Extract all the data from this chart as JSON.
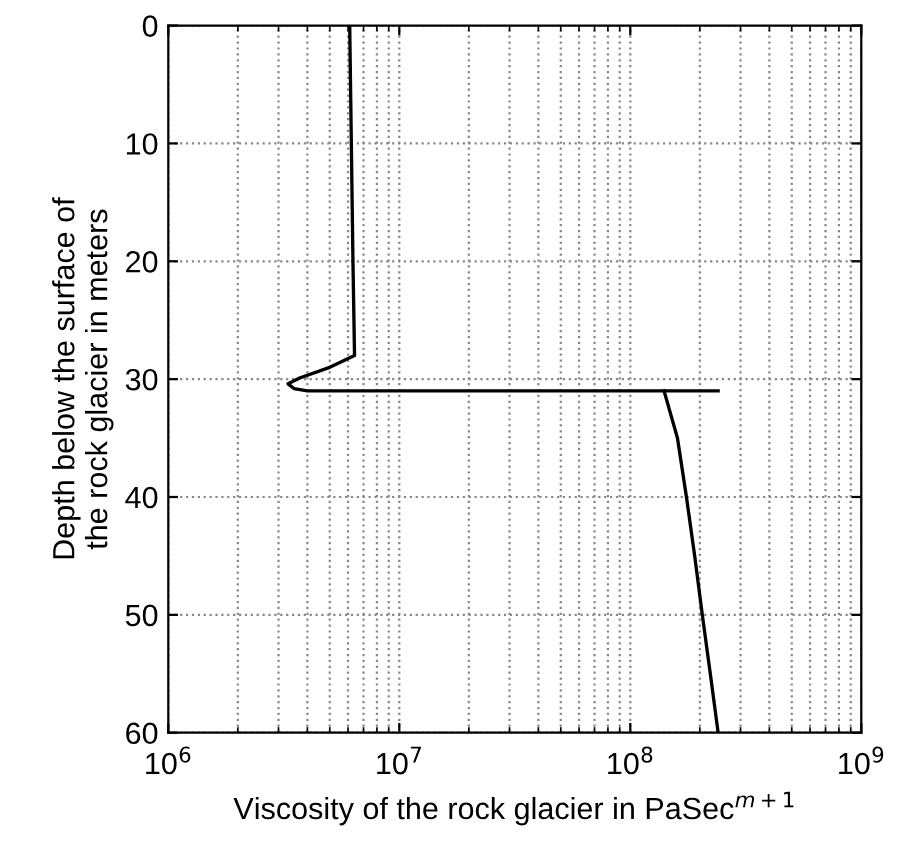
{
  "chart_data": {
    "type": "line",
    "xlabel": "Viscosity of the rock glacier in PaSec$^{m+1}$",
    "ylabel": "Depth below the surface of\nthe rock glacier in meters",
    "log": "x",
    "grid": true,
    "line_style": "solid",
    "marker": "none",
    "xlim": [
      1000000,
      1000000000
    ],
    "xticks": [
      {
        "value": 1000000,
        "label": "10$^{6}$"
      },
      {
        "value": 10000000,
        "label": "10$^{7}$"
      },
      {
        "value": 100000000,
        "label": "10$^{8}$"
      },
      {
        "value": 1000000000,
        "label": "10$^{9}$"
      }
    ],
    "ylim": [
      60,
      0
    ],
    "yticks": [
      0,
      10,
      20,
      30,
      40,
      50,
      60
    ],
    "series": [
      {
        "color": "#000000",
        "x": [
          6100000,
          6200000,
          6300000,
          6400000,
          5000000,
          3700000,
          3300000,
          3500000,
          4000000,
          10000000,
          240000000
        ],
        "values": [
          0,
          10,
          20,
          28,
          29,
          29.9,
          30.4,
          30.8,
          31,
          31,
          31
        ]
      },
      {
        "color": "#000000",
        "x": [
          140000000,
          160000000,
          175000000,
          190000000,
          205000000,
          222000000,
          240000000
        ],
        "values": [
          31,
          35,
          40,
          45,
          50,
          55,
          60
        ]
      }
    ]
  }
}
